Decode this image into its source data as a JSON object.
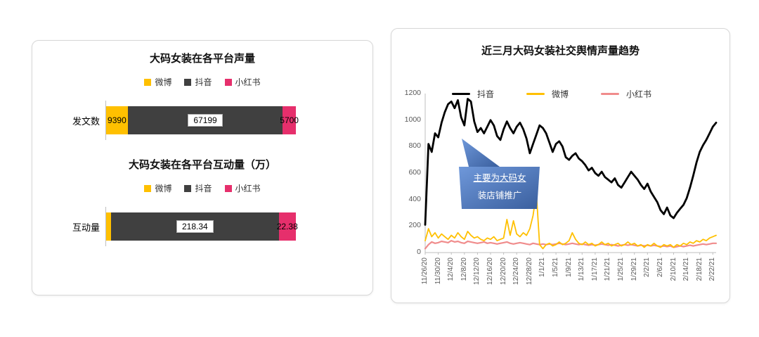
{
  "page": {
    "background": "#ffffff"
  },
  "chart_data": [
    {
      "type": "bar",
      "orientation": "horizontal_stacked",
      "title": "大码女装在各平台声量",
      "category": "发文数",
      "legend_position": "top",
      "series": [
        {
          "name": "微博",
          "color": "#FFC000",
          "value": 9390,
          "label": "9390"
        },
        {
          "name": "抖音",
          "color": "#404040",
          "value": 67199,
          "label": "67199"
        },
        {
          "name": "小红书",
          "color": "#E62F6C",
          "value": 5700,
          "label": "5700"
        }
      ]
    },
    {
      "type": "bar",
      "orientation": "horizontal_stacked",
      "title": "大码女装在各平台互动量（万）",
      "category": "互动量",
      "legend_position": "top",
      "series": [
        {
          "name": "微博",
          "color": "#FFC000",
          "value": 6.5,
          "label": ""
        },
        {
          "name": "抖音",
          "color": "#404040",
          "value": 218.34,
          "label": "218.34"
        },
        {
          "name": "小红书",
          "color": "#E62F6C",
          "value": 22.38,
          "label": "22.38"
        }
      ]
    },
    {
      "type": "line",
      "title": "近三月大码女装社交舆情声量趋势",
      "ylim": [
        0,
        1200
      ],
      "y_ticks": [
        0,
        200,
        400,
        600,
        800,
        1000,
        1200
      ],
      "grid": false,
      "legend_position": "top-inside",
      "x_tick_labels": [
        "11/26/20",
        "11/30/20",
        "12/4/20",
        "12/8/20",
        "12/12/20",
        "12/16/20",
        "12/20/20",
        "12/24/20",
        "12/28/20",
        "1/1/21",
        "1/5/21",
        "1/9/21",
        "1/13/21",
        "1/17/21",
        "1/21/21",
        "1/25/21",
        "1/29/21",
        "2/2/21",
        "2/6/21",
        "2/10/21",
        "2/14/21",
        "2/18/21",
        "2/22/21"
      ],
      "series": [
        {
          "name": "抖音",
          "color": "#000000",
          "stroke_width": 2.8,
          "values": [
            210,
            820,
            760,
            900,
            870,
            980,
            1060,
            1120,
            1140,
            1090,
            1150,
            1020,
            960,
            1160,
            1140,
            990,
            910,
            940,
            900,
            950,
            1000,
            960,
            880,
            850,
            930,
            990,
            940,
            900,
            950,
            980,
            930,
            860,
            750,
            820,
            890,
            960,
            940,
            900,
            830,
            760,
            820,
            840,
            800,
            720,
            700,
            730,
            750,
            710,
            690,
            660,
            620,
            640,
            600,
            580,
            610,
            570,
            550,
            530,
            560,
            510,
            490,
            530,
            570,
            610,
            580,
            550,
            510,
            480,
            520,
            460,
            420,
            380,
            320,
            290,
            340,
            280,
            260,
            300,
            330,
            360,
            410,
            490,
            580,
            680,
            760,
            810,
            850,
            900,
            950,
            980
          ]
        },
        {
          "name": "微博",
          "color": "#FFC000",
          "stroke_width": 1.8,
          "values": [
            90,
            180,
            120,
            150,
            110,
            140,
            120,
            100,
            130,
            110,
            150,
            120,
            100,
            160,
            130,
            110,
            120,
            100,
            90,
            110,
            100,
            120,
            90,
            100,
            110,
            250,
            130,
            240,
            140,
            120,
            150,
            130,
            180,
            280,
            450,
            60,
            30,
            60,
            70,
            50,
            60,
            80,
            60,
            70,
            90,
            150,
            100,
            70,
            60,
            80,
            60,
            70,
            50,
            60,
            80,
            60,
            70,
            50,
            60,
            70,
            50,
            60,
            80,
            60,
            70,
            50,
            60,
            40,
            60,
            50,
            70,
            50,
            40,
            60,
            50,
            60,
            40,
            60,
            50,
            70,
            60,
            80,
            70,
            90,
            80,
            100,
            90,
            110,
            120,
            130
          ]
        },
        {
          "name": "小红书",
          "color": "#F08C8C",
          "stroke_width": 2.2,
          "values": [
            30,
            60,
            80,
            70,
            75,
            85,
            80,
            75,
            90,
            80,
            85,
            75,
            70,
            85,
            80,
            75,
            70,
            75,
            80,
            70,
            75,
            70,
            65,
            70,
            75,
            80,
            70,
            65,
            70,
            75,
            70,
            65,
            60,
            70,
            65,
            60,
            65,
            60,
            65,
            60,
            65,
            70,
            65,
            60,
            65,
            70,
            65,
            60,
            65,
            60,
            55,
            60,
            55,
            60,
            65,
            60,
            55,
            60,
            55,
            50,
            55,
            60,
            55,
            60,
            55,
            50,
            55,
            50,
            55,
            50,
            55,
            50,
            45,
            50,
            45,
            50,
            40,
            45,
            50,
            45,
            50,
            55,
            50,
            55,
            60,
            65,
            60,
            65,
            70,
            70
          ]
        }
      ],
      "annotation": {
        "line1": "主要为大码女",
        "line2": "装店铺推广",
        "fill": "#4472C4"
      }
    }
  ]
}
